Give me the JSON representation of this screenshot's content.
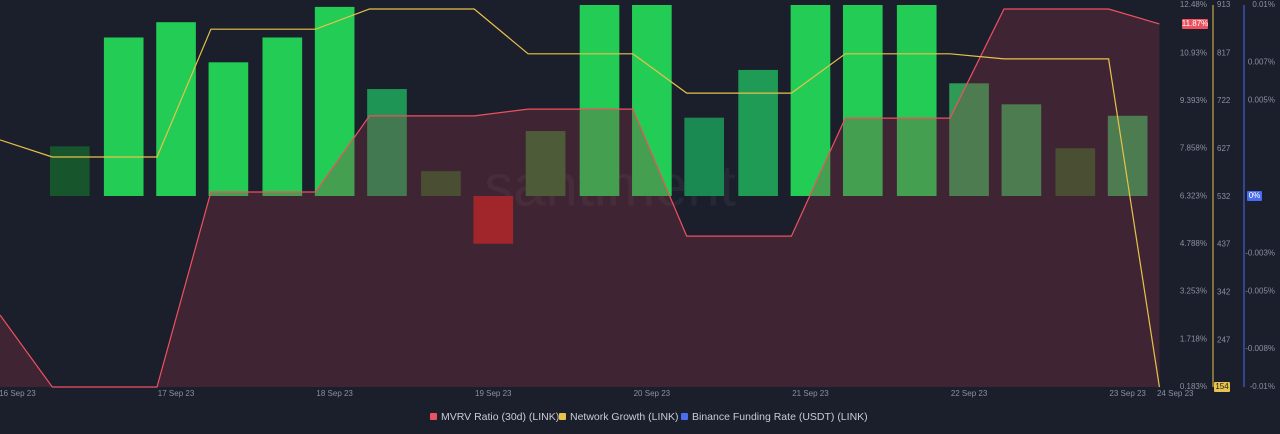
{
  "chart_data": {
    "type": "combo",
    "watermark": "santiment",
    "xlim": [
      -0.11,
      7.33
    ],
    "xticks": [
      {
        "value": 0,
        "label": "16 Sep 23"
      },
      {
        "value": 1,
        "label": "17 Sep 23"
      },
      {
        "value": 2,
        "label": "18 Sep 23"
      },
      {
        "value": 3,
        "label": "19 Sep 23"
      },
      {
        "value": 4,
        "label": "20 Sep 23"
      },
      {
        "value": 5,
        "label": "21 Sep 23"
      },
      {
        "value": 6,
        "label": "22 Sep 23"
      },
      {
        "value": 7,
        "label": "23 Sep 23"
      },
      {
        "value": 7.3,
        "label": "24 Sep 23"
      }
    ],
    "ylim": [
      0.183,
      12.48
    ],
    "yticks": [
      {
        "value": 12.48,
        "label": "12.48%"
      },
      {
        "value": 10.93,
        "label": "10.93%"
      },
      {
        "value": 9.393,
        "label": "9.393%"
      },
      {
        "value": 7.858,
        "label": "7.858%"
      },
      {
        "value": 6.323,
        "label": "6.323%"
      },
      {
        "value": 4.788,
        "label": "4.788%"
      },
      {
        "value": 3.253,
        "label": "3.253%"
      },
      {
        "value": 1.718,
        "label": "1.718%"
      },
      {
        "value": 0.183,
        "label": "0.183%"
      }
    ],
    "y2lim": [
      154,
      913
    ],
    "y2ticks": [
      913,
      817,
      722,
      627,
      532,
      437,
      342,
      247
    ],
    "y3lim": [
      -0.01,
      0.01
    ],
    "y3ticks": [
      {
        "value": 0.01,
        "label": "0.01%"
      },
      {
        "value": 0.007,
        "label": "0.007%"
      },
      {
        "value": 0.005,
        "label": "0.005%"
      },
      {
        "value": 0,
        "label": "0%"
      },
      {
        "value": -0.003,
        "label": "-0.003%"
      },
      {
        "value": -0.005,
        "label": "-0.005%"
      },
      {
        "value": -0.008,
        "label": "-0.008%"
      },
      {
        "value": -0.01,
        "label": "-0.01%"
      }
    ],
    "series": [
      {
        "name": "MVRV Ratio (30d) (LINK)",
        "type": "line",
        "axis": "y",
        "color": "#ef5060",
        "x": [
          -0.11,
          0.22,
          0.88,
          1.22,
          1.88,
          2.22,
          2.88,
          3.22,
          3.88,
          4.22,
          4.88,
          5.22,
          5.88,
          6.22,
          6.88,
          7.2
        ],
        "values": [
          2.5,
          0.183,
          0.183,
          6.46,
          6.46,
          8.91,
          8.91,
          9.13,
          9.13,
          5.04,
          5.04,
          8.84,
          8.84,
          12.35,
          12.35,
          11.87
        ],
        "value_labels": [
          null,
          null,
          null,
          null,
          null,
          null,
          null,
          null,
          null,
          null,
          null,
          null,
          null,
          null,
          null,
          "11.87%"
        ]
      },
      {
        "name": "Network Growth (LINK)",
        "type": "line",
        "axis": "y2",
        "color": "#e8c24a",
        "x": [
          -0.11,
          0.22,
          0.88,
          1.22,
          1.88,
          2.22,
          2.88,
          3.22,
          3.88,
          4.22,
          4.88,
          5.22,
          5.88,
          6.22,
          6.88,
          7.2
        ],
        "values": [
          645,
          611,
          611,
          865,
          865,
          905,
          905,
          816,
          816,
          738,
          738,
          816,
          816,
          806,
          806,
          154
        ]
      },
      {
        "name": "Binance Funding Rate (USDT) (LINK)",
        "type": "bar",
        "axis": "y3",
        "color": "#4a6cf0",
        "x": [
          0.33,
          0.67,
          1,
          1.33,
          1.67,
          2,
          2.33,
          2.67,
          3,
          3.33,
          3.67,
          4,
          4.33,
          4.67,
          5,
          5.33,
          5.67,
          6,
          6.33,
          6.67,
          7
        ],
        "values": [
          0.0026,
          0.0083,
          0.0091,
          0.007,
          0.0083,
          0.0099,
          0.0056,
          0.0013,
          -0.0025,
          0.0034,
          0.01,
          0.01,
          0.0041,
          0.0066,
          0.01,
          0.01,
          0.01,
          0.0059,
          0.0048,
          0.0025,
          0.0042
        ],
        "colors": [
          "#17552c",
          "#22cc55",
          "#22cc55",
          "#22cc55",
          "#22cc55",
          "#22cc55",
          "#1f9555",
          "#2a5a2c",
          "#a51f22",
          "#2e6a34",
          "#22cc55",
          "#22cc55",
          "#1b8a52",
          "#1f9b55",
          "#22cc55",
          "#22cc55",
          "#22cc55",
          "#2f9a55",
          "#2f9a55",
          "#2a5a2c",
          "#2f9a55"
        ]
      }
    ]
  }
}
